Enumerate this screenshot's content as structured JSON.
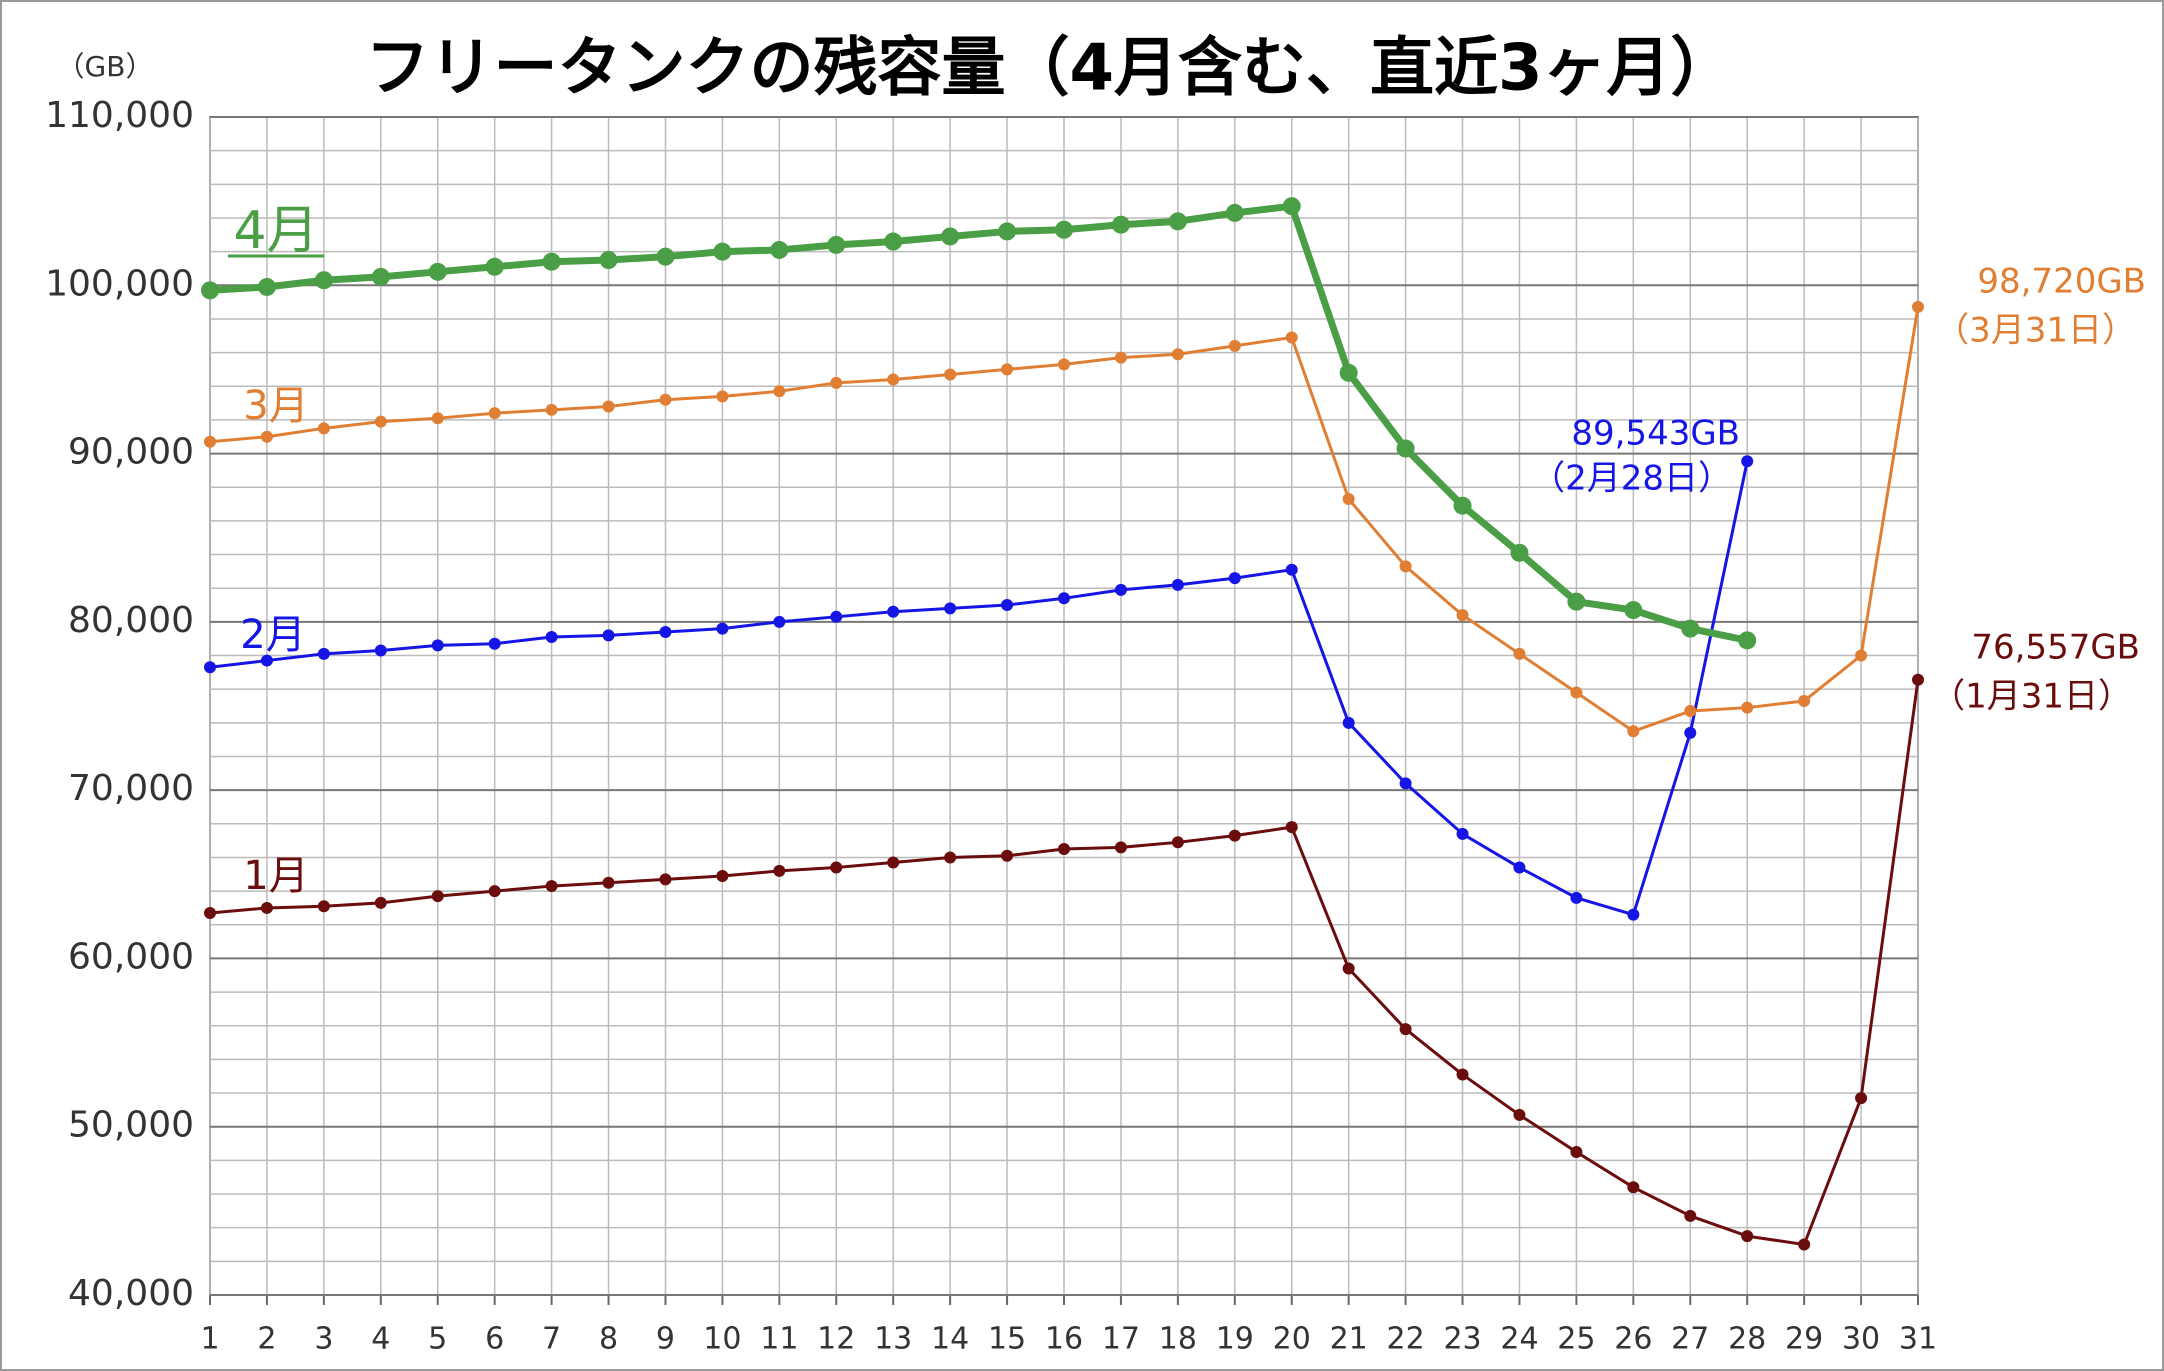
{
  "chart_data": {
    "type": "line",
    "title": "フリータンクの残容量（4月含む、直近3ヶ月）",
    "y_unit": "（GB）",
    "categories": [
      "1",
      "2",
      "3",
      "4",
      "5",
      "6",
      "7",
      "8",
      "9",
      "10",
      "11",
      "12",
      "13",
      "14",
      "15",
      "16",
      "17",
      "18",
      "19",
      "20",
      "21",
      "22",
      "23",
      "24",
      "25",
      "26",
      "27",
      "28",
      "29",
      "30",
      "31"
    ],
    "series": [
      {
        "name": "4月",
        "color": "#4a9e45",
        "values": [
          99700,
          99900,
          100300,
          100500,
          100800,
          101100,
          101400,
          101500,
          101700,
          102000,
          102100,
          102400,
          102600,
          102900,
          103200,
          103300,
          103600,
          103800,
          104300,
          104700,
          94800,
          90300,
          86900,
          84100,
          81200,
          80700,
          79600,
          78900,
          null,
          null,
          null
        ]
      },
      {
        "name": "3月",
        "color": "#e07f33",
        "values": [
          90700,
          91000,
          91500,
          91900,
          92100,
          92400,
          92600,
          92800,
          93200,
          93400,
          93700,
          94200,
          94400,
          94700,
          95000,
          95300,
          95700,
          95900,
          96400,
          96900,
          87300,
          83300,
          80400,
          78100,
          75800,
          73500,
          74700,
          74900,
          75300,
          78000,
          98720
        ]
      },
      {
        "name": "2月",
        "color": "#1515e6",
        "values": [
          77300,
          77700,
          78100,
          78300,
          78600,
          78700,
          79100,
          79200,
          79400,
          79600,
          80000,
          80300,
          80600,
          80800,
          81000,
          81400,
          81900,
          82200,
          82600,
          83100,
          74000,
          70400,
          67400,
          65400,
          63600,
          62600,
          73400,
          89543,
          null,
          null,
          null
        ]
      },
      {
        "name": "1月",
        "color": "#6b0d0d",
        "values": [
          62700,
          63000,
          63100,
          63300,
          63700,
          64000,
          64300,
          64500,
          64700,
          64900,
          65200,
          65400,
          65700,
          66000,
          66100,
          66500,
          66600,
          66900,
          67300,
          67800,
          59400,
          55800,
          53100,
          50700,
          48500,
          46400,
          44700,
          43500,
          43000,
          51700,
          76557
        ]
      }
    ],
    "annotations": [
      {
        "text": "98,720GB",
        "color": "#e07f33"
      },
      {
        "text": "（3月31日）",
        "color": "#e07f33"
      },
      {
        "text": "89,543GB",
        "color": "#1515e6"
      },
      {
        "text": "（2月28日）",
        "color": "#1515e6"
      },
      {
        "text": "76,557GB",
        "color": "#6b0d0d"
      },
      {
        "text": "（1月31日）",
        "color": "#6b0d0d"
      }
    ],
    "ylim": [
      40000,
      110000
    ],
    "yticks": [
      {
        "value": 40000,
        "label": "40,000"
      },
      {
        "value": 50000,
        "label": "50,000"
      },
      {
        "value": 60000,
        "label": "60,000"
      },
      {
        "value": 70000,
        "label": "70,000"
      },
      {
        "value": 80000,
        "label": "80,000"
      },
      {
        "value": 90000,
        "label": "90,000"
      },
      {
        "value": 100000,
        "label": "100,000"
      },
      {
        "value": 110000,
        "label": "110,000"
      }
    ],
    "grid": true
  }
}
